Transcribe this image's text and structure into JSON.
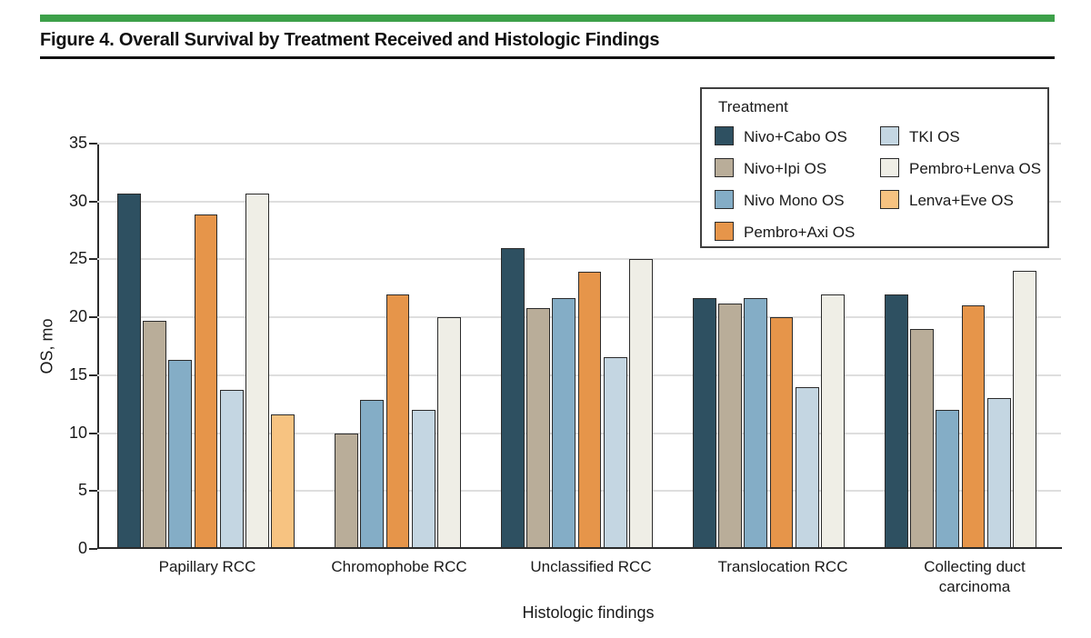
{
  "figure": {
    "title": "Figure 4. Overall Survival by Treatment Received and Histologic Findings"
  },
  "colors": {
    "accent_green": "#3DA049",
    "axis": "#2B2B2B",
    "gridline": "#DEDEDE",
    "bar_stroke": "#2B2B2B",
    "zero_bar": "#1A1A1A",
    "legend_border": "#3F3F3F"
  },
  "chart_data": {
    "type": "bar",
    "title": "",
    "xlabel": "Histologic findings",
    "ylabel": "OS, mo",
    "ylim": [
      0,
      35
    ],
    "yticks": [
      0,
      5,
      10,
      15,
      20,
      25,
      30,
      35
    ],
    "grid": true,
    "legend_title": "Treatment",
    "legend_position": "top-right",
    "legend_columns": [
      4,
      3
    ],
    "zero_value_style": "flat dark tick at baseline",
    "categories": [
      "Papillary RCC",
      "Chromophobe RCC",
      "Unclassified RCC",
      "Translocation RCC",
      "Collecting duct carcinoma"
    ],
    "series": [
      {
        "name": "Nivo+Cabo OS",
        "color": "#2E5061",
        "values": [
          30.7,
          0,
          26.0,
          21.7,
          22.0
        ]
      },
      {
        "name": "Nivo+Ipi OS",
        "color": "#B9AD99",
        "values": [
          19.7,
          10.0,
          20.8,
          21.2,
          19.0
        ]
      },
      {
        "name": "Nivo Mono OS",
        "color": "#84ADC6",
        "values": [
          16.3,
          12.9,
          21.7,
          21.7,
          12.0
        ]
      },
      {
        "name": "Pembro+Axi OS",
        "color": "#E6954A",
        "values": [
          28.9,
          22.0,
          23.9,
          20.0,
          21.0
        ]
      },
      {
        "name": "TKI OS",
        "color": "#C4D6E2",
        "values": [
          13.7,
          12.0,
          16.6,
          14.0,
          13.0
        ]
      },
      {
        "name": "Pembro+Lenva OS",
        "color": "#EFEEE6",
        "values": [
          30.7,
          20.0,
          25.0,
          22.0,
          24.0
        ]
      },
      {
        "name": "Lenva+Eve OS",
        "color": "#F7C381",
        "values": [
          11.6,
          0,
          0,
          0,
          0
        ]
      }
    ]
  }
}
